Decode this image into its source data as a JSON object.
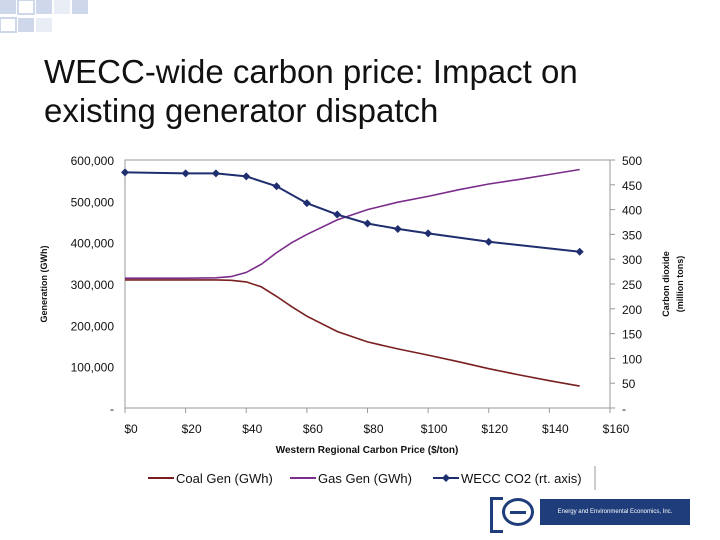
{
  "slide": {
    "title": "WECC-wide carbon price: Impact on existing generator dispatch",
    "logo_text": "Energy and Environmental Economics, Inc.",
    "accent": "#1f3d7a"
  },
  "chart_data": {
    "type": "line",
    "xlabel": "Western Regional Carbon Price ($/ton)",
    "ylabel": "Generation (GWh)",
    "y2label_line1": "Carbon dioxide",
    "y2label_line2": "(million tons)",
    "x_ticks": [
      "$0",
      "$20",
      "$40",
      "$60",
      "$80",
      "$100",
      "$120",
      "$140",
      "$160"
    ],
    "xlim": [
      0,
      160
    ],
    "y_ticks": [
      "-",
      "100,000",
      "200,000",
      "300,000",
      "400,000",
      "500,000",
      "600,000"
    ],
    "ylim": [
      0,
      600000
    ],
    "y2_ticks": [
      "-",
      "50",
      "100",
      "150",
      "200",
      "250",
      "300",
      "350",
      "400",
      "450",
      "500"
    ],
    "y2lim": [
      0,
      500
    ],
    "legend_position": "bottom",
    "series": [
      {
        "name": "Coal Gen (GWh)",
        "axis": "left",
        "color": "#7a1f1f",
        "markers": false,
        "x": [
          0,
          10,
          20,
          30,
          35,
          40,
          45,
          50,
          55,
          60,
          70,
          80,
          90,
          100,
          110,
          120,
          130,
          140,
          150
        ],
        "y": [
          310000,
          310000,
          310000,
          310000,
          309000,
          305000,
          293000,
          270000,
          245000,
          222000,
          185000,
          160000,
          143000,
          128000,
          112000,
          95000,
          80000,
          66000,
          53000
        ]
      },
      {
        "name": "Gas Gen (GWh)",
        "axis": "left",
        "color": "#7b2d8b",
        "markers": false,
        "x": [
          0,
          10,
          20,
          30,
          35,
          40,
          45,
          50,
          55,
          60,
          70,
          80,
          90,
          100,
          110,
          120,
          130,
          140,
          150
        ],
        "y": [
          314000,
          314000,
          314000,
          315000,
          318000,
          328000,
          348000,
          376000,
          400000,
          420000,
          455000,
          480000,
          498000,
          512000,
          528000,
          542000,
          553000,
          565000,
          577000
        ]
      },
      {
        "name": "WECC CO2 (rt. axis)",
        "axis": "right",
        "color": "#1f2e6e",
        "markers": true,
        "x": [
          0,
          20,
          30,
          40,
          50,
          60,
          70,
          80,
          90,
          100,
          120,
          150
        ],
        "y": [
          475,
          473,
          473,
          467,
          447,
          413,
          390,
          372,
          361,
          352,
          335,
          315
        ]
      }
    ]
  }
}
